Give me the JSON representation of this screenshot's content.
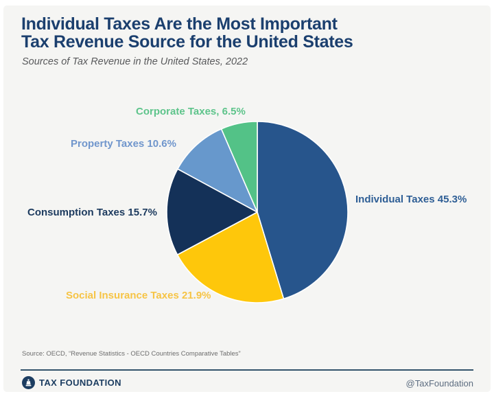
{
  "page": {
    "card_background": "#f5f5f3",
    "frame_background": "#ffffff"
  },
  "header": {
    "title_line1": "Individual Taxes Are the Most Important",
    "title_line2": "Tax Revenue Source for the United States",
    "title_color": "#1b3f6e",
    "subtitle": "Sources of Tax Revenue in the United States, 2022"
  },
  "chart_data": {
    "type": "pie",
    "title": "Sources of Tax Revenue in the United States, 2022",
    "units": "percent",
    "start_angle_deg": 0,
    "direction": "clockwise",
    "slice_border_color": "#ffffff",
    "slices": [
      {
        "label": "Individual Taxes",
        "value": 45.3,
        "display": "Individual Taxes 45.3%",
        "color": "#27558c",
        "label_color": "#2e5e95"
      },
      {
        "label": "Social Insurance Taxes",
        "value": 21.9,
        "display": "Social Insurance Taxes 21.9%",
        "color": "#fec70b",
        "label_color": "#f6c445"
      },
      {
        "label": "Consumption Taxes",
        "value": 15.7,
        "display": "Consumption Taxes 15.7%",
        "color": "#143158",
        "label_color": "#1c3a5e"
      },
      {
        "label": "Property Taxes",
        "value": 10.6,
        "display": "Property Taxes 10.6%",
        "color": "#6798cc",
        "label_color": "#7096cc"
      },
      {
        "label": "Corporate Taxes",
        "value": 6.5,
        "display": "Corporate Taxes, 6.5%",
        "color": "#53c287",
        "label_color": "#5ec48b"
      }
    ]
  },
  "source_note": "Source: OECD, “Revenue Statistics - OECD Countries Comparative Tables”",
  "footer": {
    "brand": "TAX FOUNDATION",
    "handle": "@TaxFoundation",
    "brand_color": "#1c3d61",
    "divider_color": "#33536b"
  }
}
